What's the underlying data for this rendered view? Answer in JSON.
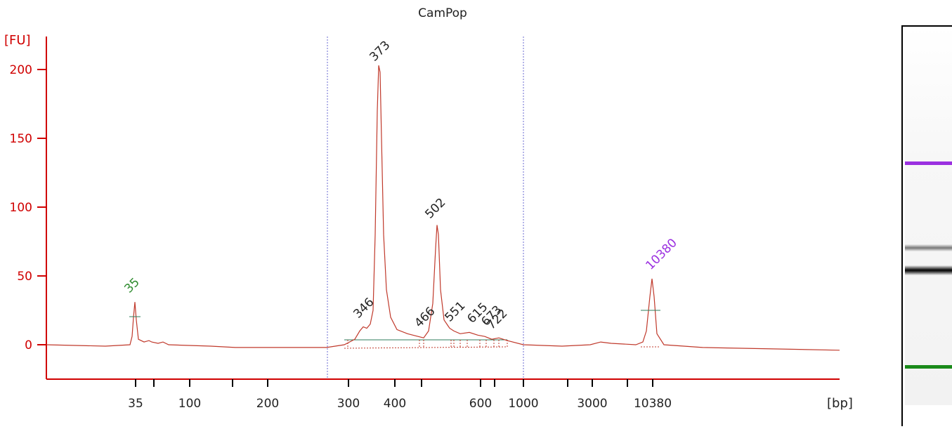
{
  "chart_data": {
    "type": "line",
    "title": "CamPop",
    "ylabel": "[FU]",
    "xlabel": "[bp]",
    "ylim": [
      -25,
      225
    ],
    "y_ticks": [
      0,
      50,
      100,
      150,
      200
    ],
    "x_tick_labels": [
      "35",
      "100",
      "200",
      "300",
      "400",
      "600",
      "1000",
      "3000",
      "10380"
    ],
    "series": [
      {
        "values": [
          {
            "x": "35",
            "y": 0
          },
          {
            "x": "35",
            "y": 31
          },
          {
            "x": "35",
            "y": 2
          },
          {
            "x": "100",
            "y": 0
          },
          {
            "x": "300",
            "y": -1
          },
          {
            "x": "346",
            "y": 13
          },
          {
            "x": "373",
            "y": 203
          },
          {
            "x": "400",
            "y": 10
          },
          {
            "x": "466",
            "y": 5
          },
          {
            "x": "502",
            "y": 87
          },
          {
            "x": "551",
            "y": 10
          },
          {
            "x": "615",
            "y": 9
          },
          {
            "x": "673",
            "y": 6
          },
          {
            "x": "722",
            "y": 5
          },
          {
            "x": "1000",
            "y": 0
          },
          {
            "x": "3000",
            "y": 1
          },
          {
            "x": "10380",
            "y": 48
          },
          {
            "x": "10380",
            "y": -3
          }
        ]
      }
    ],
    "peaks": [
      {
        "label": "35",
        "y": 31,
        "color": "#2e8b2e"
      },
      {
        "label": "346",
        "y": 13,
        "color": "#222222"
      },
      {
        "label": "373",
        "y": 203,
        "color": "#222222"
      },
      {
        "label": "466",
        "y": 5,
        "color": "#222222"
      },
      {
        "label": "502",
        "y": 87,
        "color": "#222222"
      },
      {
        "label": "551",
        "y": 10,
        "color": "#222222"
      },
      {
        "label": "615",
        "y": 9,
        "color": "#222222"
      },
      {
        "label": "673",
        "y": 6,
        "color": "#222222"
      },
      {
        "label": "722",
        "y": 5,
        "color": "#222222"
      },
      {
        "label": "10380",
        "y": 48,
        "color": "#9b30e0"
      }
    ],
    "colors": {
      "trace": "#c0392b",
      "axis": "#d00000",
      "region": "#6a6ad0",
      "lower_marker": "#2e8b2e",
      "upper_marker": "#9b30e0"
    }
  },
  "gel": {
    "bands": [
      {
        "name": "upper-marker",
        "color": "#9b30e0"
      },
      {
        "name": "band-502",
        "color": "#888888"
      },
      {
        "name": "band-373",
        "color": "#111111"
      },
      {
        "name": "lower-marker",
        "color": "#1a8a1a"
      }
    ]
  }
}
